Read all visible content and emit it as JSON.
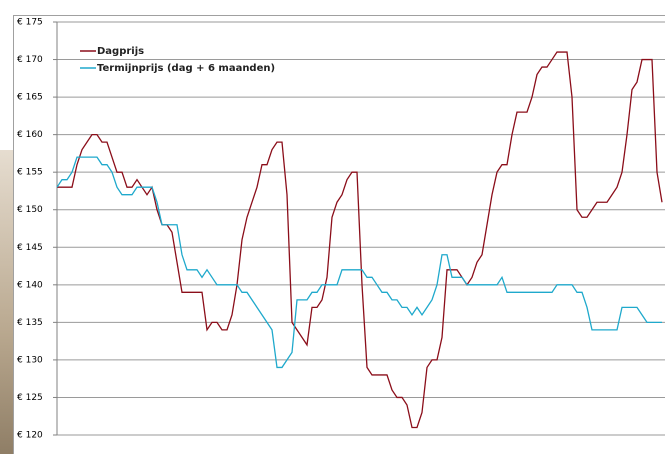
{
  "chart_data": {
    "type": "line",
    "categories": [
      null,
      null,
      null,
      null,
      null,
      null,
      null,
      null,
      null,
      null,
      null,
      null,
      null,
      null,
      null,
      null,
      null,
      null,
      null,
      null,
      null,
      null,
      null,
      null,
      null,
      null,
      null,
      null,
      null,
      null,
      null,
      null,
      null,
      null,
      null,
      null,
      null,
      null,
      null,
      null,
      null,
      null,
      null,
      null,
      null,
      null,
      null,
      null,
      null,
      null,
      null,
      null,
      null,
      null,
      null,
      null,
      null,
      null,
      null,
      null,
      null,
      null,
      null,
      null,
      null,
      null,
      null,
      null,
      null,
      null,
      null,
      null,
      null,
      null,
      null,
      null,
      null,
      null,
      null,
      null,
      null,
      null,
      null,
      null,
      null,
      null,
      null,
      null,
      null,
      null,
      null,
      null,
      null,
      null,
      null,
      null,
      null,
      null,
      null,
      null,
      null,
      null,
      null,
      null,
      null,
      null,
      null,
      null,
      null,
      null,
      null,
      null,
      null,
      null,
      null,
      null,
      null,
      null,
      null,
      null,
      null,
      null
    ],
    "series": [
      {
        "name": "Dagprijs",
        "color": "#8b0e1a",
        "values": [
          153,
          153,
          153,
          153,
          156,
          158,
          159,
          160,
          160,
          159,
          159,
          157,
          155,
          155,
          153,
          153,
          154,
          153,
          152,
          153,
          150,
          148,
          148,
          147,
          143,
          139,
          139,
          139,
          139,
          139,
          134,
          135,
          135,
          134,
          134,
          136,
          140,
          146,
          149,
          151,
          153,
          156,
          156,
          158,
          159,
          159,
          152,
          135,
          134,
          133,
          132,
          137,
          137,
          138,
          141,
          149,
          151,
          152,
          154,
          155,
          155,
          140,
          129,
          128,
          128,
          128,
          128,
          126,
          125,
          125,
          124,
          121,
          121,
          123,
          129,
          130,
          130,
          133,
          142,
          142,
          142,
          141,
          140,
          141,
          143,
          144,
          148,
          152,
          155,
          156,
          156,
          160,
          163,
          163,
          163,
          165,
          168,
          169,
          169,
          170,
          171,
          171,
          171,
          165,
          150,
          149,
          149,
          150,
          151,
          151,
          151,
          152,
          153,
          155,
          160,
          166,
          167,
          170,
          170,
          170,
          155,
          151
        ]
      },
      {
        "name": "Termijnprijs (dag + 6 maanden)",
        "color": "#1fa9cc",
        "values": [
          153,
          154,
          154,
          155,
          157,
          157,
          157,
          157,
          157,
          156,
          156,
          155,
          153,
          152,
          152,
          152,
          153,
          153,
          153,
          153,
          151,
          148,
          148,
          148,
          148,
          144,
          142,
          142,
          142,
          141,
          142,
          141,
          140,
          140,
          140,
          140,
          140,
          139,
          139,
          138,
          137,
          136,
          135,
          134,
          129,
          129,
          130,
          131,
          138,
          138,
          138,
          139,
          139,
          140,
          140,
          140,
          140,
          142,
          142,
          142,
          142,
          142,
          141,
          141,
          140,
          139,
          139,
          138,
          138,
          137,
          137,
          136,
          137,
          136,
          137,
          138,
          140,
          144,
          144,
          141,
          141,
          141,
          140,
          140,
          140,
          140,
          140,
          140,
          140,
          141,
          139,
          139,
          139,
          139,
          139,
          139,
          139,
          139,
          139,
          139,
          140,
          140,
          140,
          140,
          139,
          139,
          137,
          134,
          134,
          134,
          134,
          134,
          134,
          137,
          137,
          137,
          137,
          136,
          135,
          135,
          135,
          135
        ]
      }
    ],
    "ylim": [
      120,
      175
    ],
    "yticks": [
      {
        "value": 120,
        "label": "€ 120"
      },
      {
        "value": 125,
        "label": "€ 125"
      },
      {
        "value": 130,
        "label": "€ 130"
      },
      {
        "value": 135,
        "label": "€ 135"
      },
      {
        "value": 140,
        "label": "€ 140"
      },
      {
        "value": 145,
        "label": "€ 145"
      },
      {
        "value": 150,
        "label": "€ 150"
      },
      {
        "value": 155,
        "label": "€ 155"
      },
      {
        "value": 160,
        "label": "€ 160"
      },
      {
        "value": 165,
        "label": "€ 165"
      },
      {
        "value": 170,
        "label": "€ 170"
      },
      {
        "value": 175,
        "label": "€ 175"
      }
    ],
    "grid": true,
    "legend": "top-left"
  }
}
